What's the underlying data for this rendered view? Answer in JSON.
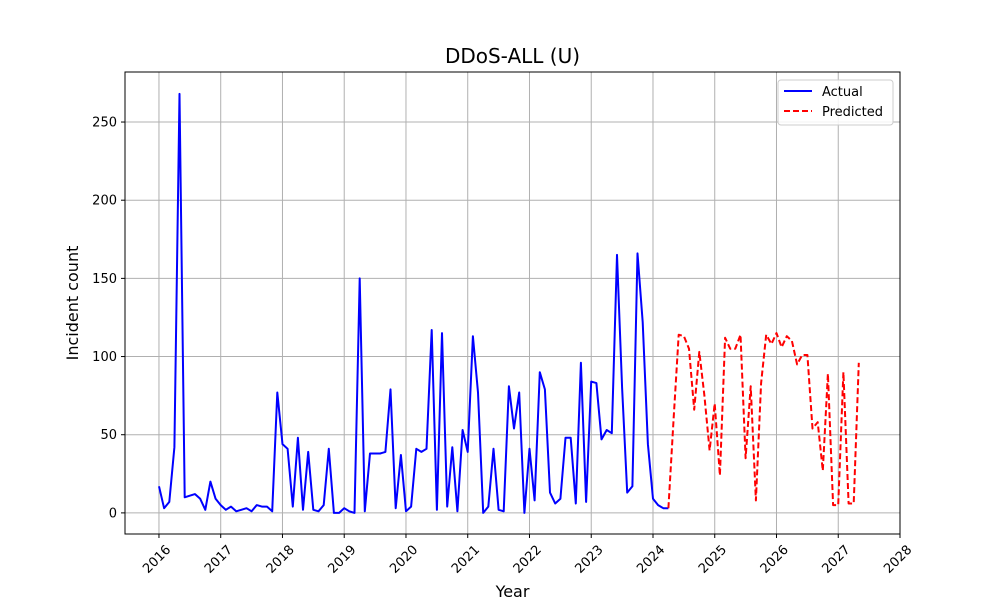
{
  "chart_data": {
    "type": "line",
    "title": "DDoS-ALL (U)",
    "xlabel": "Year",
    "ylabel": "Incident count",
    "xlim": [
      2015.45,
      2028.0
    ],
    "ylim": [
      -13.5,
      282
    ],
    "xticks": [
      2016,
      2017,
      2018,
      2019,
      2020,
      2021,
      2022,
      2023,
      2024,
      2025,
      2026,
      2027,
      2028
    ],
    "yticks": [
      0,
      50,
      100,
      150,
      200,
      250
    ],
    "grid": true,
    "legend_position": "top-right",
    "series": [
      {
        "name": "Actual",
        "color": "#0000ff",
        "style": "solid",
        "x": [
          2016.0,
          2016.083,
          2016.167,
          2016.25,
          2016.333,
          2016.417,
          2016.5,
          2016.583,
          2016.667,
          2016.75,
          2016.833,
          2016.917,
          2017.0,
          2017.083,
          2017.167,
          2017.25,
          2017.333,
          2017.417,
          2017.5,
          2017.583,
          2017.667,
          2017.75,
          2017.833,
          2017.917,
          2018.0,
          2018.083,
          2018.167,
          2018.25,
          2018.333,
          2018.417,
          2018.5,
          2018.583,
          2018.667,
          2018.75,
          2018.833,
          2018.917,
          2019.0,
          2019.083,
          2019.167,
          2019.25,
          2019.333,
          2019.417,
          2019.5,
          2019.583,
          2019.667,
          2019.75,
          2019.833,
          2019.917,
          2020.0,
          2020.083,
          2020.167,
          2020.25,
          2020.333,
          2020.417,
          2020.5,
          2020.583,
          2020.667,
          2020.75,
          2020.833,
          2020.917,
          2021.0,
          2021.083,
          2021.167,
          2021.25,
          2021.333,
          2021.417,
          2021.5,
          2021.583,
          2021.667,
          2021.75,
          2021.833,
          2021.917,
          2022.0,
          2022.083,
          2022.167,
          2022.25,
          2022.333,
          2022.417,
          2022.5,
          2022.583,
          2022.667,
          2022.75,
          2022.833,
          2022.917,
          2023.0,
          2023.083,
          2023.167,
          2023.25,
          2023.333,
          2023.417,
          2023.5,
          2023.583,
          2023.667,
          2023.75,
          2023.833,
          2023.917,
          2024.0,
          2024.083,
          2024.167,
          2024.25
        ],
        "y": [
          17,
          3,
          7,
          42,
          268,
          10,
          11,
          12,
          9,
          2,
          20,
          9,
          5,
          2,
          4,
          1,
          2,
          3,
          1,
          5,
          4,
          4,
          1,
          77,
          44,
          41,
          4,
          48,
          2,
          39,
          2,
          1,
          5,
          41,
          0,
          0,
          3,
          1,
          0,
          150,
          1,
          38,
          38,
          38,
          39,
          79,
          3,
          37,
          1,
          4,
          41,
          39,
          41,
          117,
          2,
          115,
          4,
          42,
          1,
          53,
          39,
          113,
          77,
          0,
          4,
          41,
          2,
          1,
          81,
          54,
          77,
          0,
          41,
          8,
          90,
          79,
          13,
          6,
          9,
          48,
          48,
          6,
          96,
          7,
          84,
          83,
          47,
          53,
          51,
          165,
          80,
          13,
          17,
          166,
          122,
          44,
          9,
          5,
          3,
          3
        ]
      },
      {
        "name": "Predicted",
        "color": "#ff0000",
        "style": "dashed",
        "x": [
          2024.25,
          2024.333,
          2024.417,
          2024.5,
          2024.583,
          2024.667,
          2024.75,
          2024.833,
          2024.917,
          2025.0,
          2025.083,
          2025.167,
          2025.25,
          2025.333,
          2025.417,
          2025.5,
          2025.583,
          2025.667,
          2025.75,
          2025.833,
          2025.917,
          2026.0,
          2026.083,
          2026.167,
          2026.25,
          2026.333,
          2026.417,
          2026.5,
          2026.583,
          2026.667,
          2026.75,
          2026.833,
          2026.917,
          2027.0,
          2027.083,
          2027.167,
          2027.25,
          2027.333
        ],
        "y": [
          3,
          60,
          114,
          113,
          105,
          66,
          103,
          75,
          40,
          70,
          24,
          112,
          105,
          105,
          114,
          35,
          81,
          8,
          83,
          114,
          108,
          115,
          106,
          113,
          110,
          95,
          101,
          101,
          54,
          58,
          27,
          89,
          5,
          5,
          90,
          6,
          6,
          96
        ]
      }
    ]
  }
}
